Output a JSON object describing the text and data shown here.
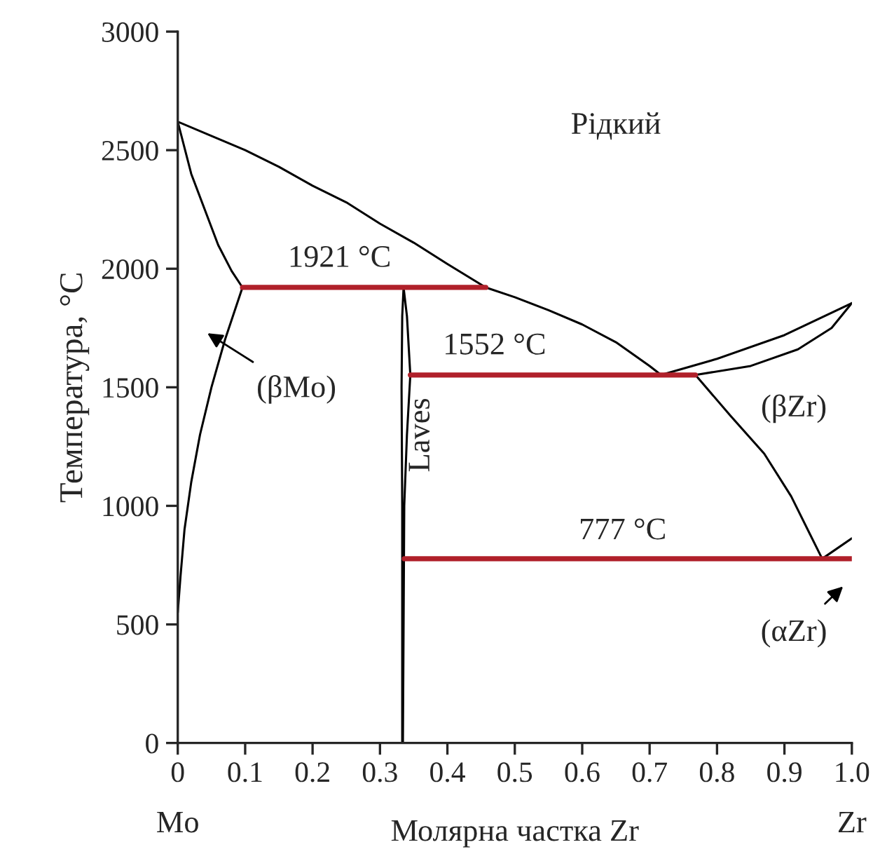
{
  "chart_data": {
    "type": "line",
    "xlabel": "Молярна частка Zr",
    "ylabel": "Температура, °C",
    "xlim": [
      0,
      1
    ],
    "ylim": [
      0,
      3000
    ],
    "xticks": [
      0,
      0.1,
      0.2,
      0.3,
      0.4,
      0.5,
      0.6,
      0.7,
      0.8,
      0.9,
      {
        "value": 1,
        "label": "1.0"
      }
    ],
    "yticks": [
      0,
      500,
      1000,
      1500,
      2000,
      2500,
      3000
    ],
    "grid": false,
    "marker": "none",
    "line_style": "solid",
    "series": [
      {
        "color": "#000000",
        "x": [
          0,
          0.05,
          0.1,
          0.15,
          0.2,
          0.25,
          0.3,
          0.35,
          0.4,
          0.457,
          0.5,
          0.55,
          0.6,
          0.65,
          0.7,
          0.717,
          0.8,
          0.9,
          1.0
        ],
        "values": [
          2620,
          2560,
          2500,
          2430,
          2350,
          2280,
          2190,
          2110,
          2020,
          1921,
          1880,
          1825,
          1765,
          1690,
          1590,
          1552,
          1620,
          1720,
          1855
        ]
      },
      {
        "color": "#000000",
        "x": [
          1.0,
          0.97,
          0.92,
          0.85,
          0.768,
          0.82,
          0.87,
          0.91,
          0.956,
          1.0
        ],
        "values": [
          1855,
          1750,
          1660,
          1590,
          1552,
          1380,
          1220,
          1040,
          777,
          863
        ]
      },
      {
        "color": "#000000",
        "x": [
          0,
          0.02,
          0.04,
          0.06,
          0.08,
          0.096,
          0.07,
          0.05,
          0.033,
          0.02,
          0.01,
          0.004,
          0
        ],
        "values": [
          2620,
          2400,
          2250,
          2100,
          1990,
          1921,
          1700,
          1500,
          1300,
          1100,
          900,
          700,
          550
        ]
      },
      {
        "color": "#000000",
        "x": [
          0.333,
          0.333,
          0.332,
          0.333,
          0.335,
          0.34,
          0.345,
          0.34,
          0.336,
          0.334
        ],
        "values": [
          0,
          1000,
          1500,
          1800,
          1921,
          1800,
          1552,
          1300,
          1000,
          0
        ]
      },
      {
        "color": "#b0202a",
        "x": [
          0.096,
          0.457
        ],
        "values": [
          1921,
          1921
        ]
      },
      {
        "color": "#b0202a",
        "x": [
          0.345,
          0.768
        ],
        "values": [
          1552,
          1552
        ]
      },
      {
        "color": "#b0202a",
        "x": [
          0.336,
          1.0
        ],
        "values": [
          777,
          777
        ]
      }
    ],
    "annotations": [
      "Рідкий",
      "1921 °C",
      "1552 °C",
      "777 °C",
      "(βZr)",
      "Laves",
      "(βMo)",
      "(αZr)",
      "Mo",
      "Zr"
    ]
  }
}
